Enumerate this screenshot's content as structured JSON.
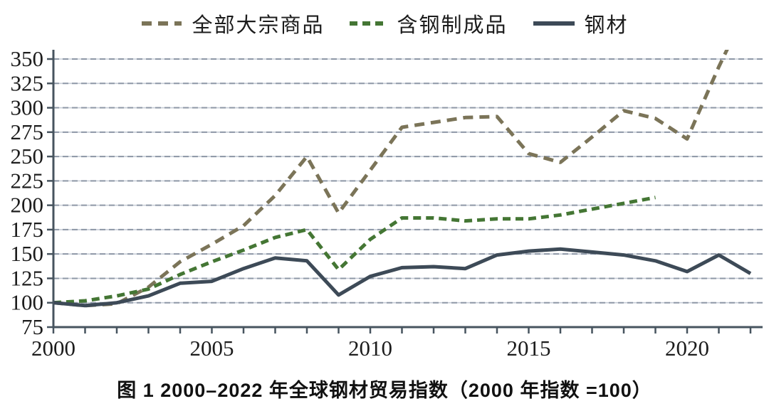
{
  "caption": "图 1  2000–2022 年全球钢材贸易指数（2000 年指数 =100）",
  "legend": {
    "items": [
      {
        "label": "全部大宗商品",
        "color": "#7b7458",
        "style": "dashed-long"
      },
      {
        "label": "含钢制成品",
        "color": "#447634",
        "style": "dashed"
      },
      {
        "label": "钢材",
        "color": "#3d4a57",
        "style": "solid"
      }
    ]
  },
  "axes": {
    "y_ticks": [
      75,
      100,
      125,
      150,
      175,
      200,
      225,
      250,
      275,
      300,
      325,
      350
    ],
    "x_labeled_ticks": [
      2000,
      2005,
      2010,
      2015,
      2020
    ],
    "text_color": "#1c1c1c",
    "axis_color": "#47545f",
    "grid_solid_color": "#c7cdd7",
    "grid_dash_color": "#8d97a6"
  },
  "chart_data": {
    "type": "line",
    "title": "图 1  2000–2022 年全球钢材贸易指数（2000 年指数 =100）",
    "xlabel": "",
    "ylabel": "",
    "ylim": [
      75,
      350
    ],
    "ytick_step": 25,
    "xlim": [
      2000,
      2022
    ],
    "grid": "horizontal dashed",
    "legend_position": "top",
    "x": [
      2000,
      2001,
      2002,
      2003,
      2004,
      2005,
      2006,
      2007,
      2008,
      2009,
      2010,
      2011,
      2012,
      2013,
      2014,
      2015,
      2016,
      2017,
      2018,
      2019,
      2020,
      2021,
      2022
    ],
    "series": [
      {
        "name": "全部大宗商品",
        "color": "#7b7458",
        "dash": [
          14,
          9
        ],
        "width": 5,
        "values": [
          100,
          97,
          99,
          116,
          142,
          160,
          179,
          210,
          250,
          192,
          236,
          280,
          285,
          290,
          291,
          253,
          244,
          270,
          297,
          289,
          268,
          342,
          410
        ],
        "note": "clipped above 350 after 2021"
      },
      {
        "name": "含钢制成品",
        "color": "#447634",
        "dash": [
          11,
          7
        ],
        "width": 5,
        "values": [
          100,
          102,
          107,
          114,
          129,
          142,
          154,
          167,
          175,
          134,
          165,
          187,
          187,
          184,
          186,
          186,
          190,
          196,
          202,
          208,
          null,
          null,
          null
        ]
      },
      {
        "name": "钢材",
        "color": "#3d4a57",
        "dash": null,
        "width": 5,
        "values": [
          100,
          97,
          100,
          107,
          120,
          122,
          135,
          146,
          143,
          108,
          127,
          136,
          137,
          135,
          149,
          153,
          155,
          152,
          149,
          143,
          132,
          149,
          130
        ]
      }
    ]
  }
}
